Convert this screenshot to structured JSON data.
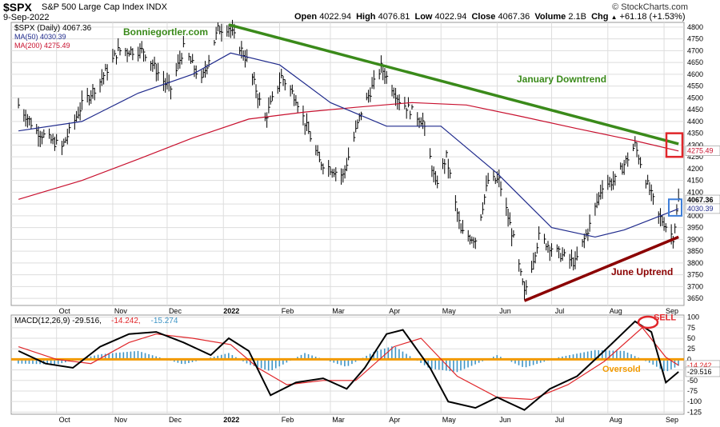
{
  "header": {
    "symbol": "$SPX",
    "description": "S&P 500 Large Cap Index  INDX",
    "date": "9-Sep-2022",
    "open_label": "Open",
    "open": "4022.94",
    "high_label": "High",
    "high": "4076.81",
    "low_label": "Low",
    "low": "4022.94",
    "close_label": "Close",
    "close": "4067.36",
    "volume_label": "Volume",
    "volume": "2.1B",
    "chg_label": "Chg",
    "chg": "+61.18 (+1.53%)",
    "chg_arrow": "▲",
    "brand": "© StockCharts.com"
  },
  "colors": {
    "price": "#000000",
    "ma50": "#1f2a8c",
    "ma200": "#c8102e",
    "downtrend": "#3a8a1a",
    "uptrend": "#8b0000",
    "macd_line": "#000000",
    "signal_line": "#e0262a",
    "histogram": "#3f95c6",
    "zero_line": "#f29a00",
    "grid": "#dddddd"
  },
  "chart_data": [
    {
      "type": "line",
      "title": "$SPX (Daily) 4067.36",
      "legend": [
        {
          "name": "$SPX (Daily) 4067.36",
          "color": "#000000"
        },
        {
          "name": "MA(50) 4030.39",
          "color": "#1f2a8c"
        },
        {
          "name": "MA(200) 4275.49",
          "color": "#c8102e"
        }
      ],
      "xlabels": [
        "Oct",
        "Nov",
        "Dec",
        "2022",
        "Feb",
        "Mar",
        "Apr",
        "May",
        "Jun",
        "Jul",
        "Aug",
        "Sep"
      ],
      "yticks": [
        3650,
        3700,
        3750,
        3800,
        3850,
        3900,
        3950,
        4000,
        4050,
        4100,
        4150,
        4200,
        4250,
        4300,
        4350,
        4400,
        4450,
        4500,
        4550,
        4600,
        4650,
        4700,
        4750,
        4800
      ],
      "ylim": [
        3620,
        4820
      ],
      "grid": true,
      "series": [
        {
          "name": "$SPX (Daily) 4067.36",
          "style": "ohlc-bars",
          "x": [
            "2021-09-10",
            "2021-09-20",
            "2021-09-30",
            "2021-10-04",
            "2021-10-15",
            "2021-10-25",
            "2021-11-04",
            "2021-11-18",
            "2021-11-30",
            "2021-12-03",
            "2021-12-10",
            "2021-12-20",
            "2021-12-29",
            "2022-01-04",
            "2022-01-14",
            "2022-01-24",
            "2022-02-02",
            "2022-02-10",
            "2022-02-23",
            "2022-03-08",
            "2022-03-18",
            "2022-03-29",
            "2022-04-08",
            "2022-04-21",
            "2022-04-28",
            "2022-05-04",
            "2022-05-12",
            "2022-05-20",
            "2022-05-27",
            "2022-06-02",
            "2022-06-10",
            "2022-06-16",
            "2022-06-24",
            "2022-07-05",
            "2022-07-14",
            "2022-07-22",
            "2022-07-29",
            "2022-08-05",
            "2022-08-16",
            "2022-08-23",
            "2022-08-29",
            "2022-09-01",
            "2022-09-06",
            "2022-09-09"
          ],
          "values": [
            4470,
            4360,
            4310,
            4290,
            4470,
            4570,
            4700,
            4700,
            4560,
            4540,
            4710,
            4570,
            4790,
            4800,
            4660,
            4410,
            4590,
            4500,
            4230,
            4170,
            4440,
            4630,
            4490,
            4400,
            4130,
            4250,
            3930,
            3900,
            4150,
            4150,
            3900,
            3670,
            3910,
            3840,
            3800,
            3960,
            4130,
            4150,
            4300,
            4130,
            4000,
            3970,
            3910,
            4067
          ]
        },
        {
          "name": "MA(50) 4030.39",
          "style": "line",
          "x": [
            "2021-09-10",
            "2021-10-15",
            "2021-11-15",
            "2021-12-15",
            "2022-01-05",
            "2022-02-01",
            "2022-03-01",
            "2022-04-01",
            "2022-05-01",
            "2022-06-01",
            "2022-07-01",
            "2022-07-25",
            "2022-08-10",
            "2022-09-09"
          ],
          "values": [
            4360,
            4400,
            4520,
            4600,
            4690,
            4640,
            4480,
            4380,
            4380,
            4180,
            3950,
            3910,
            3940,
            4030
          ]
        },
        {
          "name": "MA(200) 4275.49",
          "style": "line",
          "x": [
            "2021-09-10",
            "2021-10-15",
            "2021-11-15",
            "2021-12-15",
            "2022-01-15",
            "2022-02-15",
            "2022-03-15",
            "2022-04-15",
            "2022-05-15",
            "2022-06-15",
            "2022-07-15",
            "2022-08-15",
            "2022-09-09"
          ],
          "values": [
            4070,
            4150,
            4240,
            4330,
            4410,
            4440,
            4460,
            4480,
            4470,
            4420,
            4370,
            4320,
            4275
          ]
        },
        {
          "name": "January Downtrend",
          "style": "trendline",
          "x": [
            "2022-01-04",
            "2022-09-09"
          ],
          "values": [
            4810,
            4305
          ]
        },
        {
          "name": "June Uptrend",
          "style": "trendline",
          "x": [
            "2022-06-16",
            "2022-09-09"
          ],
          "values": [
            3640,
            3910
          ]
        }
      ],
      "price_labels": {
        "close": "4067.36",
        "ma50": "4030.39",
        "ma200": "4275.49"
      },
      "annotations": [
        {
          "text": "Bonniegortler.com",
          "color": "#3a8a1a"
        },
        {
          "text": "January Downtrend",
          "color": "#3a8a1a"
        },
        {
          "text": "June Uptrend",
          "color": "#8b0000"
        }
      ]
    },
    {
      "type": "line",
      "title": "MACD(12,26,9) -29.516, -14.242, -15.274",
      "legend_parts": [
        {
          "text": "MACD(12,26,9) -29.516,",
          "color": "#000000"
        },
        {
          "text": " -14.242,",
          "color": "#e0262a"
        },
        {
          "text": " -15.274",
          "color": "#3f95c6"
        }
      ],
      "xlabels": [
        "Oct",
        "Nov",
        "Dec",
        "2022",
        "Feb",
        "Mar",
        "Apr",
        "May",
        "Jun",
        "Jul",
        "Aug",
        "Sep"
      ],
      "yticks": [
        -125,
        -100,
        -75,
        -50,
        -25,
        0,
        25,
        50,
        75,
        100
      ],
      "ylim": [
        -130,
        105
      ],
      "grid": true,
      "series": [
        {
          "name": "MACD",
          "x": [
            "2021-09-10",
            "2021-09-25",
            "2021-10-10",
            "2021-10-25",
            "2021-11-10",
            "2021-11-25",
            "2021-12-10",
            "2021-12-25",
            "2022-01-04",
            "2022-01-15",
            "2022-01-27",
            "2022-02-10",
            "2022-02-25",
            "2022-03-10",
            "2022-03-20",
            "2022-04-01",
            "2022-04-10",
            "2022-04-25",
            "2022-05-05",
            "2022-05-20",
            "2022-06-01",
            "2022-06-16",
            "2022-06-30",
            "2022-07-15",
            "2022-07-30",
            "2022-08-16",
            "2022-08-25",
            "2022-09-02",
            "2022-09-09"
          ],
          "values": [
            20,
            -10,
            -20,
            30,
            60,
            65,
            40,
            10,
            50,
            20,
            -85,
            -55,
            -45,
            -70,
            -20,
            60,
            70,
            -20,
            -100,
            -115,
            -90,
            -120,
            -70,
            -40,
            20,
            90,
            65,
            -55,
            -29.5
          ]
        },
        {
          "name": "Signal",
          "x": [
            "2021-09-10",
            "2021-10-01",
            "2021-10-20",
            "2021-11-10",
            "2021-11-25",
            "2021-12-15",
            "2022-01-05",
            "2022-01-20",
            "2022-02-05",
            "2022-02-25",
            "2022-03-15",
            "2022-04-05",
            "2022-04-20",
            "2022-05-10",
            "2022-06-01",
            "2022-06-20",
            "2022-07-10",
            "2022-07-30",
            "2022-08-20",
            "2022-09-02",
            "2022-09-09"
          ],
          "values": [
            30,
            0,
            -10,
            40,
            60,
            50,
            35,
            -20,
            -60,
            -50,
            -50,
            30,
            50,
            -40,
            -90,
            -95,
            -60,
            -5,
            75,
            5,
            -14.2
          ]
        },
        {
          "name": "Histogram",
          "x": [
            "2021-09-10",
            "2021-10-01",
            "2021-10-25",
            "2021-11-15",
            "2021-12-10",
            "2022-01-04",
            "2022-01-15",
            "2022-01-27",
            "2022-02-15",
            "2022-03-10",
            "2022-03-25",
            "2022-04-05",
            "2022-04-25",
            "2022-05-10",
            "2022-06-01",
            "2022-06-16",
            "2022-07-05",
            "2022-07-25",
            "2022-08-10",
            "2022-08-25",
            "2022-09-02",
            "2022-09-09"
          ],
          "values": [
            -10,
            -12,
            12,
            20,
            -12,
            15,
            -12,
            -28,
            15,
            -18,
            18,
            32,
            -22,
            -30,
            10,
            -20,
            5,
            22,
            20,
            -10,
            -30,
            -15.3
          ]
        }
      ],
      "price_labels": {
        "signal": "-14.242",
        "macd": "-29.516"
      },
      "annotations": [
        {
          "text": "SELL",
          "color": "#e0262a"
        },
        {
          "text": "Oversold",
          "color": "#f29a00"
        }
      ]
    }
  ]
}
